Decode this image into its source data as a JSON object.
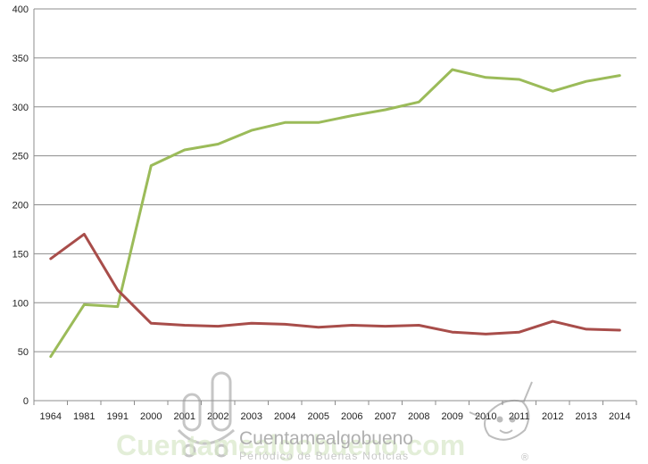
{
  "chart_data": {
    "type": "line",
    "categories": [
      "1964",
      "1981",
      "1991",
      "2000",
      "2001",
      "2002",
      "2003",
      "2004",
      "2005",
      "2006",
      "2007",
      "2008",
      "2009",
      "2010",
      "2011",
      "2012",
      "2013",
      "2014"
    ],
    "series": [
      {
        "color": "#9bbb59",
        "values": [
          45,
          98,
          96,
          240,
          256,
          262,
          276,
          284,
          284,
          291,
          297,
          305,
          338,
          330,
          328,
          316,
          326,
          332
        ]
      },
      {
        "color": "#a84d4a",
        "values": [
          145,
          170,
          113,
          79,
          77,
          76,
          79,
          78,
          75,
          77,
          76,
          77,
          70,
          68,
          70,
          81,
          73,
          72
        ]
      }
    ],
    "ylim": [
      0,
      400
    ],
    "yticks": [
      "0",
      "50",
      "100",
      "150",
      "200",
      "250",
      "300",
      "350",
      "400"
    ],
    "grid": true,
    "title": "",
    "xlabel": "",
    "ylabel": ""
  },
  "watermark": {
    "brand": "Cuentamealgobueno",
    "domain_mark": "Cuentamealgobueno.com",
    "tagline": "Periódico de Buenas Noticias",
    "registered": "®"
  }
}
